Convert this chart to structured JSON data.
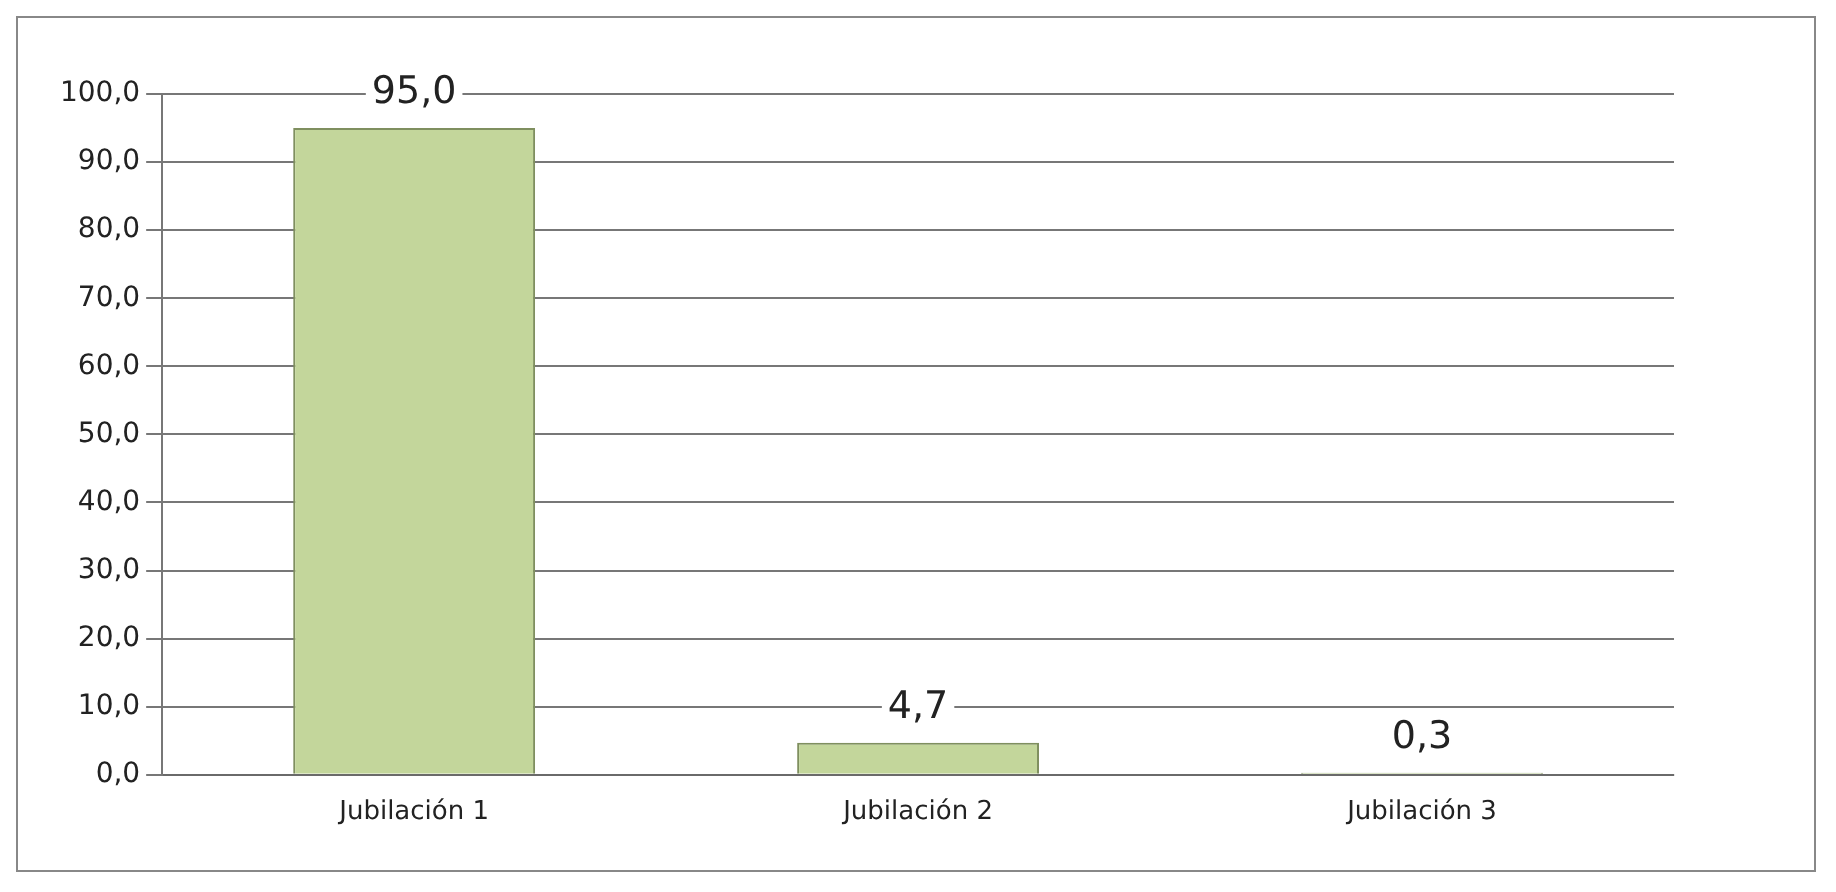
{
  "chart_data": {
    "type": "bar",
    "categories": [
      "Jubilación 1",
      "Jubilación 2",
      "Jubilación 3"
    ],
    "values": [
      95.0,
      4.7,
      0.3
    ],
    "value_labels": [
      "95,0",
      "4,7",
      "0,3"
    ],
    "color": "#c3d69b",
    "ylim": [
      0,
      100
    ],
    "yticks": [
      {
        "value": 0,
        "label": "0,0"
      },
      {
        "value": 10,
        "label": "10,0"
      },
      {
        "value": 20,
        "label": "20,0"
      },
      {
        "value": 30,
        "label": "30,0"
      },
      {
        "value": 40,
        "label": "40,0"
      },
      {
        "value": 50,
        "label": "50,0"
      },
      {
        "value": 60,
        "label": "60,0"
      },
      {
        "value": 70,
        "label": "70,0"
      },
      {
        "value": 80,
        "label": "80,0"
      },
      {
        "value": 90,
        "label": "90,0"
      },
      {
        "value": 100,
        "label": "100,0"
      }
    ],
    "grid": "y",
    "legend": false
  }
}
